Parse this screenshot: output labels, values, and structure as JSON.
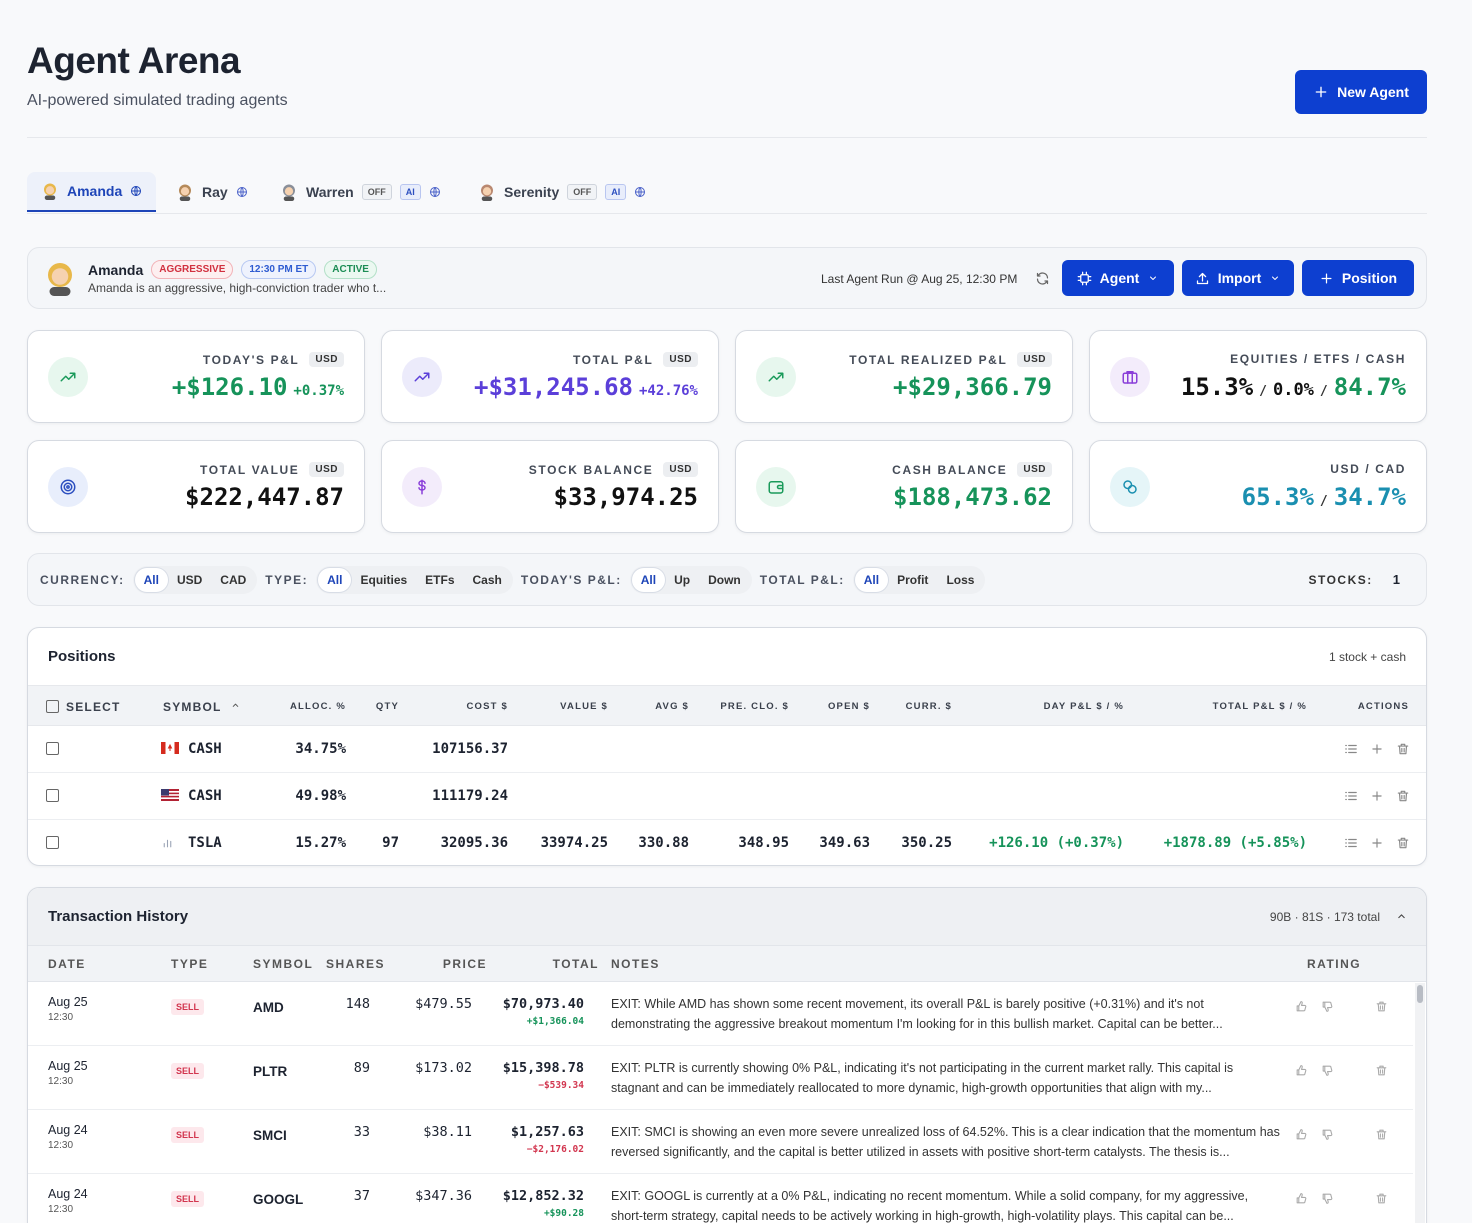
{
  "header": {
    "title": "Agent Arena",
    "subtitle": "AI-powered simulated trading agents",
    "new_agent": "New Agent"
  },
  "tabs": [
    {
      "name": "Amanda"
    },
    {
      "name": "Ray"
    },
    {
      "name": "Warren",
      "badges": [
        "OFF",
        "AI"
      ]
    },
    {
      "name": "Serenity",
      "badges": [
        "OFF",
        "AI"
      ]
    }
  ],
  "agent": {
    "name": "Amanda",
    "badges": [
      "AGGRESSIVE",
      "12:30 PM ET",
      "ACTIVE"
    ],
    "description": "Amanda is an aggressive, high-conviction trader who t...",
    "last_run": "Last Agent Run @ Aug 25, 12:30 PM",
    "buttons": [
      "Agent",
      "Import",
      "Position"
    ]
  },
  "stats": [
    {
      "label": "TODAY'S P&L",
      "currency": "USD",
      "parts": [
        "+$126.10",
        "+0.37%"
      ]
    },
    {
      "label": "TOTAL P&L",
      "currency": "USD",
      "parts": [
        "+$31,245.68",
        "+42.76%"
      ]
    },
    {
      "label": "TOTAL REALIZED P&L",
      "currency": "USD",
      "parts": [
        "+$29,366.79"
      ]
    },
    {
      "label": "EQUITIES / ETFS / CASH",
      "parts": [
        "15.3%",
        "/",
        "0.0%",
        "/",
        "84.7%"
      ]
    },
    {
      "label": "TOTAL VALUE",
      "currency": "USD",
      "parts": [
        "$222,447.87"
      ]
    },
    {
      "label": "STOCK BALANCE",
      "currency": "USD",
      "parts": [
        "$33,974.25"
      ]
    },
    {
      "label": "CASH BALANCE",
      "currency": "USD",
      "parts": [
        "$188,473.62"
      ]
    },
    {
      "label": "USD / CAD",
      "parts": [
        "65.3%",
        "/",
        "34.7%"
      ]
    }
  ],
  "filters": {
    "groups": [
      {
        "label": "CURRENCY:",
        "options": [
          "All",
          "USD",
          "CAD"
        ]
      },
      {
        "label": "TYPE:",
        "options": [
          "All",
          "Equities",
          "ETFs",
          "Cash"
        ]
      },
      {
        "label": "TODAY'S P&L:",
        "options": [
          "All",
          "Up",
          "Down"
        ]
      },
      {
        "label": "TOTAL P&L:",
        "options": [
          "All",
          "Profit",
          "Loss"
        ]
      }
    ],
    "stocks_label": "STOCKS:",
    "stocks_count": "1"
  },
  "positions": {
    "title": "Positions",
    "summary": "1 stock + cash",
    "columns": [
      "SELECT",
      "SYMBOL",
      "ALLOC. %",
      "QTY",
      "COST $",
      "VALUE $",
      "AVG $",
      "PRE. CLO. $",
      "OPEN $",
      "CURR. $",
      "DAY P&L $ / %",
      "TOTAL P&L $ / %",
      "ACTIONS"
    ],
    "rows": [
      {
        "icon": "ca",
        "cells": [
          null,
          "CASH",
          "34.75%",
          null,
          "107156.37",
          null,
          null,
          null,
          null,
          null,
          null,
          null,
          null
        ]
      },
      {
        "icon": "us",
        "cells": [
          null,
          "CASH",
          "49.98%",
          null,
          "111179.24",
          null,
          null,
          null,
          null,
          null,
          null,
          null,
          null
        ]
      },
      {
        "icon": "stock",
        "cells": [
          null,
          "TSLA",
          "15.27%",
          "97",
          "32095.36",
          "33974.25",
          "330.88",
          "348.95",
          "349.63",
          "350.25",
          "+126.10 (+0.37%)",
          "+1878.89 (+5.85%)",
          null
        ]
      }
    ]
  },
  "transactions": {
    "title": "Transaction History",
    "summary": "90B · 81S · 173 total",
    "columns": [
      "DATE",
      "TYPE",
      "SYMBOL",
      "SHARES",
      "PRICE",
      "TOTAL",
      "NOTES",
      "RATING"
    ],
    "rows": [
      {
        "date": "Aug 25",
        "time": "12:30",
        "type": "SELL",
        "symbol": "AMD",
        "shares": "148",
        "price": "$479.55",
        "total": "$70,973.40",
        "pnl": "+$1,366.04",
        "notes": "EXIT: While AMD has shown some recent movement, its overall P&L is barely positive (+0.31%) and it's not demonstrating the aggressive breakout momentum I'm looking for in this bullish market. Capital can be better..."
      },
      {
        "date": "Aug 25",
        "time": "12:30",
        "type": "SELL",
        "symbol": "PLTR",
        "shares": "89",
        "price": "$173.02",
        "total": "$15,398.78",
        "pnl": "−$539.34",
        "notes": "EXIT: PLTR is currently showing 0% P&L, indicating it's not participating in the current market rally. This capital is stagnant and can be immediately reallocated to more dynamic, high-growth opportunities that align with my..."
      },
      {
        "date": "Aug 24",
        "time": "12:30",
        "type": "SELL",
        "symbol": "SMCI",
        "shares": "33",
        "price": "$38.11",
        "total": "$1,257.63",
        "pnl": "−$2,176.02",
        "notes": "EXIT: SMCI is showing an even more severe unrealized loss of 64.52%. This is a clear indication that the momentum has reversed significantly, and the capital is better utilized in assets with positive short-term catalysts. The thesis is..."
      },
      {
        "date": "Aug 24",
        "time": "12:30",
        "type": "SELL",
        "symbol": "GOOGL",
        "shares": "37",
        "price": "$347.36",
        "total": "$12,852.32",
        "pnl": "+$90.28",
        "notes": "EXIT: GOOGL is currently at a 0% P&L, indicating no recent momentum. While a solid company, for my aggressive, short-term strategy, capital needs to be actively working in high-growth, high-volatility plays. This capital can be..."
      }
    ]
  }
}
